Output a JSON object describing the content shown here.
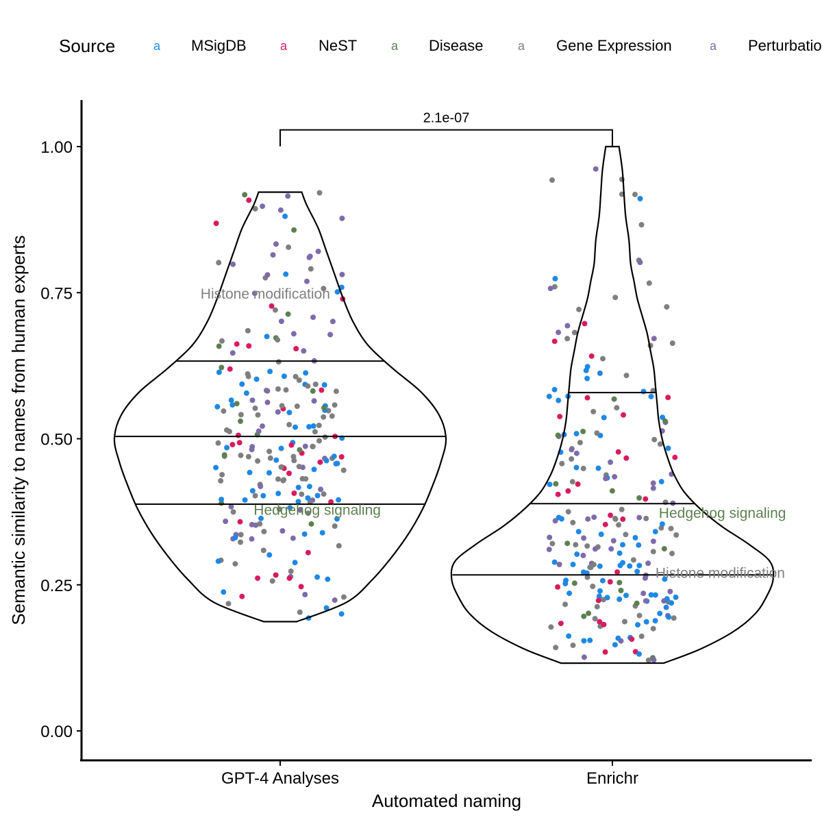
{
  "chart_data": {
    "type": "violin",
    "xlabel": "Automated naming",
    "ylabel": "Semantic similarity to names from human experts",
    "ylim": [
      -0.05,
      1.07
    ],
    "yticks": [
      "0.00",
      "0.25",
      "0.50",
      "0.75",
      "1.00"
    ],
    "ytick_values": [
      0,
      0.25,
      0.5,
      0.75,
      1.0
    ],
    "categories": [
      "GPT-4 Analyses",
      "Enrichr"
    ],
    "legend": {
      "title": "Source",
      "placement": "top",
      "key_glyph": "a",
      "entries": [
        {
          "name": "MSigDB",
          "color": "#1E88E5"
        },
        {
          "name": "NeST",
          "color": "#D81B60"
        },
        {
          "name": "Disease",
          "color": "#5E8050"
        },
        {
          "name": "Gene Expression",
          "color": "#7F7F7F"
        },
        {
          "name": "Perturbation",
          "color": "#7E6BAA"
        }
      ]
    },
    "violins": [
      {
        "category": "GPT-4 Analyses",
        "min": 0.187,
        "max": 0.922,
        "quantiles": [
          0.388,
          0.504,
          0.633
        ],
        "density": [
          [
            0.187,
            0.1
          ],
          [
            0.22,
            0.4
          ],
          [
            0.26,
            0.56
          ],
          [
            0.3,
            0.68
          ],
          [
            0.34,
            0.78
          ],
          [
            0.38,
            0.86
          ],
          [
            0.42,
            0.92
          ],
          [
            0.46,
            0.97
          ],
          [
            0.5,
            1.0
          ],
          [
            0.54,
            0.96
          ],
          [
            0.58,
            0.85
          ],
          [
            0.62,
            0.68
          ],
          [
            0.66,
            0.53
          ],
          [
            0.7,
            0.44
          ],
          [
            0.74,
            0.38
          ],
          [
            0.78,
            0.33
          ],
          [
            0.82,
            0.28
          ],
          [
            0.86,
            0.23
          ],
          [
            0.9,
            0.16
          ],
          [
            0.922,
            0.13
          ]
        ]
      },
      {
        "category": "Enrichr",
        "min": 0.116,
        "max": 1.0,
        "quantiles": [
          0.267,
          0.389,
          0.579
        ],
        "density": [
          [
            0.116,
            0.31
          ],
          [
            0.14,
            0.53
          ],
          [
            0.17,
            0.73
          ],
          [
            0.2,
            0.86
          ],
          [
            0.23,
            0.93
          ],
          [
            0.26,
            0.97
          ],
          [
            0.29,
            0.95
          ],
          [
            0.32,
            0.82
          ],
          [
            0.35,
            0.66
          ],
          [
            0.38,
            0.53
          ],
          [
            0.41,
            0.43
          ],
          [
            0.44,
            0.37
          ],
          [
            0.47,
            0.33
          ],
          [
            0.5,
            0.3
          ],
          [
            0.53,
            0.28
          ],
          [
            0.56,
            0.27
          ],
          [
            0.59,
            0.26
          ],
          [
            0.62,
            0.25
          ],
          [
            0.65,
            0.23
          ],
          [
            0.68,
            0.21
          ],
          [
            0.71,
            0.18
          ],
          [
            0.74,
            0.15
          ],
          [
            0.77,
            0.13
          ],
          [
            0.8,
            0.11
          ],
          [
            0.84,
            0.1
          ],
          [
            0.88,
            0.08
          ],
          [
            0.92,
            0.07
          ],
          [
            0.96,
            0.06
          ],
          [
            1.0,
            0.04
          ]
        ]
      }
    ],
    "annotations": [
      {
        "category": "GPT-4 Analyses",
        "text": "Histone modification",
        "y": 0.748,
        "offset": -0.24,
        "color": "#7F7F7F"
      },
      {
        "category": "GPT-4 Analyses",
        "text": "Hedgehog signaling",
        "y": 0.378,
        "offset": -0.08,
        "color": "#5E8050"
      },
      {
        "category": "Enrichr",
        "text": "Hedgehog signaling",
        "y": 0.373,
        "offset": 0.14,
        "color": "#5E8050"
      },
      {
        "category": "Enrichr",
        "text": "Histone modification",
        "y": 0.27,
        "offset": 0.13,
        "color": "#7F7F7F"
      }
    ],
    "significance": {
      "text": "2.1e-07",
      "y": 1.045
    },
    "points": [
      {
        "category": "GPT-4 Analyses",
        "n": 240,
        "seed": 11,
        "mix": [
          0.3,
          0.13,
          0.06,
          0.27,
          0.24
        ]
      },
      {
        "category": "Enrichr",
        "n": 230,
        "seed": 29,
        "mix": [
          0.34,
          0.12,
          0.08,
          0.26,
          0.2
        ]
      }
    ]
  }
}
